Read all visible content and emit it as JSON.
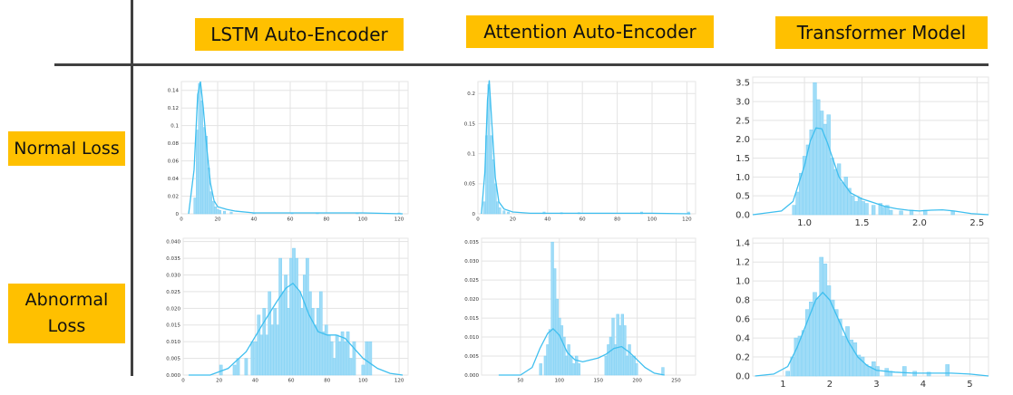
{
  "headers": [
    "LSTM Auto-Encoder",
    "Attention Auto-Encoder",
    "Transformer Model"
  ],
  "rows": [
    "Normal Loss",
    "Abnormal\nLoss"
  ],
  "colors": {
    "label_bg": "#ffc000",
    "divider": "#404040",
    "bar": "#9fdcf7",
    "kde": "#3fbfef",
    "grid": "#e3e3e3"
  },
  "chart_data": [
    {
      "id": "lstm-normal",
      "type": "bar",
      "title": "",
      "xlabel": "",
      "ylabel": "",
      "xlim": [
        0,
        125
      ],
      "ylim": [
        0,
        0.15
      ],
      "xticks": [
        0,
        20,
        40,
        60,
        80,
        100,
        120
      ],
      "yticks": [
        0.0,
        0.02,
        0.04,
        0.06,
        0.08,
        0.1,
        0.12,
        0.14
      ],
      "bin_width": 1.25,
      "bars": [
        [
          7.5,
          0.018
        ],
        [
          8.75,
          0.095
        ],
        [
          10,
          0.148
        ],
        [
          11.25,
          0.128
        ],
        [
          12.5,
          0.098
        ],
        [
          13.75,
          0.088
        ],
        [
          15,
          0.052
        ],
        [
          16.25,
          0.025
        ],
        [
          17.5,
          0.014
        ],
        [
          18.75,
          0.008
        ],
        [
          20,
          0.005
        ],
        [
          21.25,
          0.004
        ],
        [
          23.75,
          0.003
        ],
        [
          27.5,
          0.002
        ],
        [
          40,
          0.001
        ],
        [
          61,
          0.001
        ],
        [
          75,
          0.001
        ],
        [
          97,
          0.001
        ],
        [
          120,
          0.001
        ]
      ],
      "kde": [
        [
          4,
          0.0
        ],
        [
          7,
          0.05
        ],
        [
          9,
          0.135
        ],
        [
          10.5,
          0.15
        ],
        [
          12,
          0.122
        ],
        [
          14,
          0.075
        ],
        [
          16,
          0.035
        ],
        [
          18,
          0.015
        ],
        [
          20,
          0.008
        ],
        [
          25,
          0.005
        ],
        [
          30,
          0.003
        ],
        [
          40,
          0.001
        ],
        [
          60,
          0.001
        ],
        [
          100,
          0.001
        ],
        [
          122,
          0.0
        ]
      ],
      "grid": true,
      "legend": "none"
    },
    {
      "id": "attention-normal",
      "type": "bar",
      "title": "",
      "xlabel": "",
      "ylabel": "",
      "xlim": [
        0,
        125
      ],
      "ylim": [
        0,
        0.22
      ],
      "xticks": [
        0,
        20,
        40,
        60,
        80,
        100,
        120
      ],
      "yticks": [
        0.0,
        0.05,
        0.1,
        0.15,
        0.2
      ],
      "bin_width": 1.25,
      "bars": [
        [
          3.75,
          0.02
        ],
        [
          5,
          0.13
        ],
        [
          6.25,
          0.215
        ],
        [
          7.5,
          0.13
        ],
        [
          8.75,
          0.09
        ],
        [
          10,
          0.05
        ],
        [
          11.25,
          0.02
        ],
        [
          12.5,
          0.01
        ],
        [
          15,
          0.005
        ],
        [
          17.5,
          0.003
        ],
        [
          38,
          0.003
        ],
        [
          48,
          0.002
        ],
        [
          58,
          0.002
        ],
        [
          94,
          0.003
        ],
        [
          121,
          0.003
        ]
      ],
      "kde": [
        [
          2,
          0.0
        ],
        [
          4,
          0.07
        ],
        [
          5.5,
          0.19
        ],
        [
          6.5,
          0.222
        ],
        [
          8,
          0.15
        ],
        [
          10,
          0.06
        ],
        [
          12,
          0.02
        ],
        [
          15,
          0.008
        ],
        [
          20,
          0.003
        ],
        [
          30,
          0.001
        ],
        [
          60,
          0.001
        ],
        [
          100,
          0.001
        ],
        [
          122,
          0.0
        ]
      ],
      "grid": true,
      "legend": "none"
    },
    {
      "id": "transformer-normal",
      "type": "bar",
      "title": "",
      "xlabel": "",
      "ylabel": "",
      "xlim": [
        0.55,
        2.6
      ],
      "ylim": [
        0,
        3.65
      ],
      "xticks": [
        1.0,
        1.5,
        2.0,
        2.5
      ],
      "xtick_labels": [
        "1.0",
        "1.5",
        "2.0",
        "2.5"
      ],
      "yticks": [
        0.0,
        0.5,
        1.0,
        1.5,
        2.0,
        2.5,
        3.0,
        3.5
      ],
      "ytick_labels": [
        "0.0",
        "0.5",
        "1.0",
        "1.5",
        "2.0",
        "2.5",
        "3.0",
        "3.5"
      ],
      "bin_width": 0.03,
      "bars": [
        [
          0.91,
          0.25
        ],
        [
          0.94,
          0.6
        ],
        [
          0.97,
          1.1
        ],
        [
          1.0,
          1.55
        ],
        [
          1.03,
          1.85
        ],
        [
          1.06,
          2.25
        ],
        [
          1.09,
          3.5
        ],
        [
          1.12,
          3.05
        ],
        [
          1.15,
          2.75
        ],
        [
          1.18,
          2.4
        ],
        [
          1.21,
          2.65
        ],
        [
          1.24,
          1.5
        ],
        [
          1.27,
          1.2
        ],
        [
          1.3,
          1.35
        ],
        [
          1.33,
          0.85
        ],
        [
          1.36,
          1.0
        ],
        [
          1.39,
          0.7
        ],
        [
          1.42,
          0.5
        ],
        [
          1.45,
          0.35
        ],
        [
          1.48,
          0.45
        ],
        [
          1.51,
          0.35
        ],
        [
          1.54,
          0.3
        ],
        [
          1.6,
          0.25
        ],
        [
          1.66,
          0.3
        ],
        [
          1.69,
          0.2
        ],
        [
          1.72,
          0.25
        ],
        [
          1.75,
          0.12
        ],
        [
          1.84,
          0.1
        ],
        [
          1.93,
          0.12
        ],
        [
          2.05,
          0.12
        ],
        [
          2.29,
          0.1
        ]
      ],
      "kde": [
        [
          0.55,
          0.0
        ],
        [
          0.8,
          0.1
        ],
        [
          0.9,
          0.35
        ],
        [
          1.0,
          1.3
        ],
        [
          1.05,
          1.95
        ],
        [
          1.1,
          2.3
        ],
        [
          1.15,
          2.28
        ],
        [
          1.2,
          1.9
        ],
        [
          1.3,
          1.0
        ],
        [
          1.4,
          0.58
        ],
        [
          1.5,
          0.42
        ],
        [
          1.6,
          0.32
        ],
        [
          1.7,
          0.22
        ],
        [
          1.8,
          0.16
        ],
        [
          1.9,
          0.12
        ],
        [
          2.0,
          0.1
        ],
        [
          2.1,
          0.12
        ],
        [
          2.2,
          0.13
        ],
        [
          2.3,
          0.1
        ],
        [
          2.45,
          0.03
        ],
        [
          2.6,
          0.0
        ]
      ],
      "grid": true,
      "legend": "none"
    },
    {
      "id": "lstm-abnormal",
      "type": "bar",
      "title": "",
      "xlabel": "",
      "ylabel": "",
      "xlim": [
        0,
        125
      ],
      "ylim": [
        0,
        0.041
      ],
      "xticks": [
        0,
        20,
        40,
        60,
        80,
        100,
        120
      ],
      "yticks": [
        0.0,
        0.005,
        0.01,
        0.015,
        0.02,
        0.025,
        0.03,
        0.035,
        0.04
      ],
      "ytick_labels": [
        "0.000",
        "0.005",
        "0.010",
        "0.015",
        "0.020",
        "0.025",
        "0.030",
        "0.035",
        "0.040"
      ],
      "bin_width": 1.6,
      "bars": [
        [
          21,
          0.003
        ],
        [
          28.5,
          0.003
        ],
        [
          30.5,
          0.005
        ],
        [
          35,
          0.005
        ],
        [
          38.5,
          0.01
        ],
        [
          40.5,
          0.01
        ],
        [
          42,
          0.018
        ],
        [
          43.5,
          0.012
        ],
        [
          45,
          0.02
        ],
        [
          46.5,
          0.012
        ],
        [
          48,
          0.025
        ],
        [
          49.5,
          0.015
        ],
        [
          51,
          0.02
        ],
        [
          52.5,
          0.015
        ],
        [
          54,
          0.035
        ],
        [
          55.5,
          0.025
        ],
        [
          57,
          0.03
        ],
        [
          58.5,
          0.02
        ],
        [
          60,
          0.035
        ],
        [
          61.5,
          0.038
        ],
        [
          63,
          0.035
        ],
        [
          64.5,
          0.025
        ],
        [
          66,
          0.02
        ],
        [
          67.5,
          0.03
        ],
        [
          69,
          0.035
        ],
        [
          70.5,
          0.025
        ],
        [
          72,
          0.02
        ],
        [
          73.5,
          0.015
        ],
        [
          75,
          0.02
        ],
        [
          76.5,
          0.025
        ],
        [
          78,
          0.013
        ],
        [
          79.5,
          0.015
        ],
        [
          81,
          0.012
        ],
        [
          82.5,
          0.01
        ],
        [
          84,
          0.005
        ],
        [
          85.5,
          0.012
        ],
        [
          87,
          0.01
        ],
        [
          88.5,
          0.013
        ],
        [
          90,
          0.01
        ],
        [
          91.5,
          0.013
        ],
        [
          93,
          0.005
        ],
        [
          95,
          0.01
        ],
        [
          100,
          0.003
        ],
        [
          102,
          0.01
        ],
        [
          104,
          0.01
        ]
      ],
      "kde": [
        [
          3,
          0.0
        ],
        [
          15,
          0.0
        ],
        [
          25,
          0.002
        ],
        [
          35,
          0.007
        ],
        [
          45,
          0.016
        ],
        [
          52,
          0.022
        ],
        [
          57,
          0.026
        ],
        [
          61,
          0.0275
        ],
        [
          65,
          0.025
        ],
        [
          70,
          0.018
        ],
        [
          75,
          0.013
        ],
        [
          80,
          0.012
        ],
        [
          85,
          0.012
        ],
        [
          90,
          0.011
        ],
        [
          95,
          0.008
        ],
        [
          100,
          0.005
        ],
        [
          108,
          0.002
        ],
        [
          115,
          0.0005
        ],
        [
          122,
          0.0
        ]
      ],
      "grid": true,
      "legend": "none"
    },
    {
      "id": "attention-abnormal",
      "type": "bar",
      "title": "",
      "xlabel": "",
      "ylabel": "",
      "xlim": [
        0,
        275
      ],
      "ylim": [
        0,
        0.036
      ],
      "xticks": [
        50,
        100,
        150,
        200,
        250
      ],
      "yticks": [
        0.0,
        0.005,
        0.01,
        0.015,
        0.02,
        0.025,
        0.03,
        0.035
      ],
      "ytick_labels": [
        "0.000",
        "0.005",
        "0.010",
        "0.015",
        "0.020",
        "0.025",
        "0.030",
        "0.035"
      ],
      "bin_width": 3.3,
      "bars": [
        [
          76,
          0.003
        ],
        [
          82,
          0.005
        ],
        [
          85,
          0.008
        ],
        [
          88,
          0.012
        ],
        [
          91,
          0.035
        ],
        [
          94,
          0.028
        ],
        [
          97,
          0.02
        ],
        [
          100,
          0.015
        ],
        [
          103,
          0.013
        ],
        [
          106,
          0.01
        ],
        [
          109,
          0.005
        ],
        [
          112,
          0.008
        ],
        [
          115,
          0.005
        ],
        [
          118,
          0.003
        ],
        [
          122,
          0.005
        ],
        [
          125,
          0.003
        ],
        [
          160,
          0.005
        ],
        [
          163,
          0.008
        ],
        [
          166,
          0.01
        ],
        [
          169,
          0.015
        ],
        [
          172,
          0.008
        ],
        [
          175,
          0.016
        ],
        [
          178,
          0.013
        ],
        [
          181,
          0.016
        ],
        [
          184,
          0.013
        ],
        [
          187,
          0.005
        ],
        [
          190,
          0.008
        ],
        [
          193,
          0.005
        ],
        [
          196,
          0.005
        ],
        [
          199,
          0.003
        ],
        [
          233,
          0.002
        ]
      ],
      "kde": [
        [
          22,
          0.0
        ],
        [
          50,
          0.0
        ],
        [
          65,
          0.002
        ],
        [
          75,
          0.007
        ],
        [
          85,
          0.011
        ],
        [
          92,
          0.0122
        ],
        [
          100,
          0.0105
        ],
        [
          110,
          0.006
        ],
        [
          120,
          0.004
        ],
        [
          130,
          0.0035
        ],
        [
          140,
          0.004
        ],
        [
          150,
          0.0045
        ],
        [
          160,
          0.0055
        ],
        [
          170,
          0.007
        ],
        [
          180,
          0.0075
        ],
        [
          190,
          0.006
        ],
        [
          200,
          0.004
        ],
        [
          210,
          0.002
        ],
        [
          222,
          0.0005
        ],
        [
          235,
          0.0
        ]
      ],
      "grid": true,
      "legend": "none"
    },
    {
      "id": "transformer-abnormal",
      "type": "bar",
      "title": "",
      "xlabel": "",
      "ylabel": "",
      "xlim": [
        0.35,
        5.4
      ],
      "ylim": [
        0,
        1.45
      ],
      "xticks": [
        1,
        2,
        3,
        4,
        5
      ],
      "yticks": [
        0.0,
        0.2,
        0.4,
        0.6,
        0.8,
        1.0,
        1.2,
        1.4
      ],
      "ytick_labels": [
        "0.0",
        "0.2",
        "0.4",
        "0.6",
        "0.8",
        "1.0",
        "1.2",
        "1.4"
      ],
      "bin_width": 0.08,
      "bars": [
        [
          1.1,
          0.05
        ],
        [
          1.2,
          0.2
        ],
        [
          1.28,
          0.4
        ],
        [
          1.36,
          0.42
        ],
        [
          1.44,
          0.48
        ],
        [
          1.52,
          0.7
        ],
        [
          1.6,
          0.78
        ],
        [
          1.68,
          0.88
        ],
        [
          1.74,
          0.82
        ],
        [
          1.82,
          1.25
        ],
        [
          1.9,
          1.18
        ],
        [
          1.98,
          0.95
        ],
        [
          2.06,
          0.8
        ],
        [
          2.14,
          0.7
        ],
        [
          2.22,
          0.6
        ],
        [
          2.3,
          0.42
        ],
        [
          2.38,
          0.52
        ],
        [
          2.46,
          0.38
        ],
        [
          2.54,
          0.35
        ],
        [
          2.62,
          0.22
        ],
        [
          2.7,
          0.2
        ],
        [
          2.78,
          0.12
        ],
        [
          2.86,
          0.1
        ],
        [
          2.94,
          0.15
        ],
        [
          3.02,
          0.1
        ],
        [
          3.22,
          0.08
        ],
        [
          3.3,
          0.05
        ],
        [
          3.6,
          0.1
        ],
        [
          3.82,
          0.05
        ],
        [
          4.12,
          0.04
        ],
        [
          4.52,
          0.12
        ]
      ],
      "kde": [
        [
          0.4,
          0.0
        ],
        [
          0.8,
          0.02
        ],
        [
          1.1,
          0.1
        ],
        [
          1.3,
          0.3
        ],
        [
          1.5,
          0.55
        ],
        [
          1.7,
          0.8
        ],
        [
          1.85,
          0.88
        ],
        [
          2.0,
          0.8
        ],
        [
          2.2,
          0.58
        ],
        [
          2.4,
          0.36
        ],
        [
          2.6,
          0.2
        ],
        [
          2.8,
          0.11
        ],
        [
          3.0,
          0.06
        ],
        [
          3.4,
          0.04
        ],
        [
          3.8,
          0.03
        ],
        [
          4.2,
          0.03
        ],
        [
          4.6,
          0.03
        ],
        [
          5.0,
          0.02
        ],
        [
          5.4,
          0.0
        ]
      ],
      "grid": true,
      "legend": "none"
    }
  ]
}
